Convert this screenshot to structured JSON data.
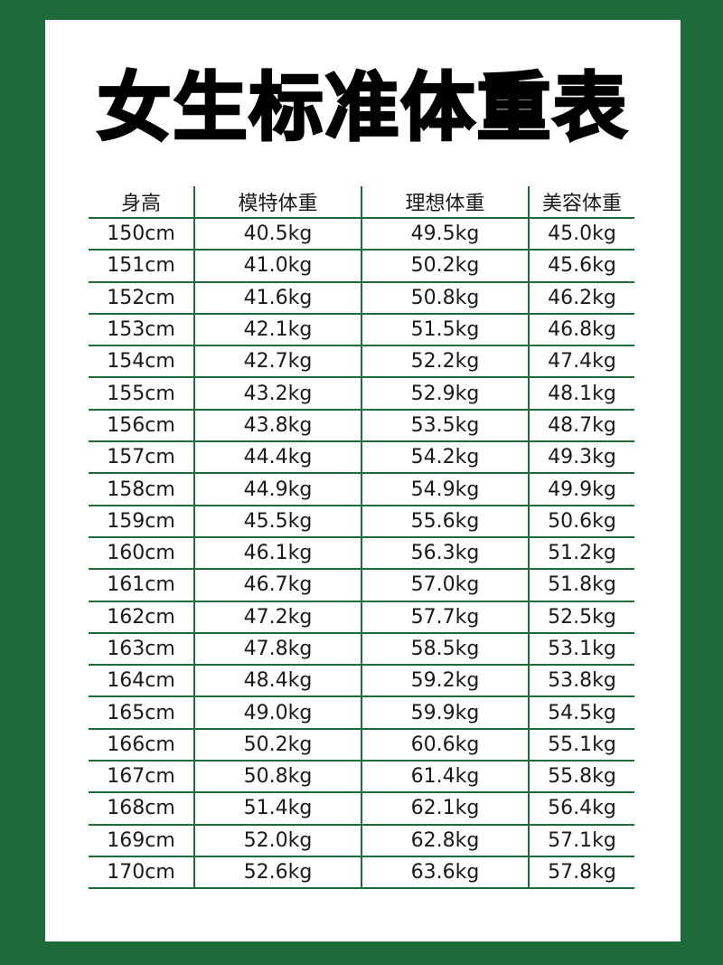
{
  "title": "女生标准体重表",
  "colors": {
    "frame": "#1d6a3b",
    "text": "#1a1a1a"
  },
  "table": {
    "headers": [
      "身高",
      "模特体重",
      "理想体重",
      "美容体重"
    ],
    "rows": [
      [
        "150cm",
        "40.5kg",
        "49.5kg",
        "45.0kg"
      ],
      [
        "151cm",
        "41.0kg",
        "50.2kg",
        "45.6kg"
      ],
      [
        "152cm",
        "41.6kg",
        "50.8kg",
        "46.2kg"
      ],
      [
        "153cm",
        "42.1kg",
        "51.5kg",
        "46.8kg"
      ],
      [
        "154cm",
        "42.7kg",
        "52.2kg",
        "47.4kg"
      ],
      [
        "155cm",
        "43.2kg",
        "52.9kg",
        "48.1kg"
      ],
      [
        "156cm",
        "43.8kg",
        "53.5kg",
        "48.7kg"
      ],
      [
        "157cm",
        "44.4kg",
        "54.2kg",
        "49.3kg"
      ],
      [
        "158cm",
        "44.9kg",
        "54.9kg",
        "49.9kg"
      ],
      [
        "159cm",
        "45.5kg",
        "55.6kg",
        "50.6kg"
      ],
      [
        "160cm",
        "46.1kg",
        "56.3kg",
        "51.2kg"
      ],
      [
        "161cm",
        "46.7kg",
        "57.0kg",
        "51.8kg"
      ],
      [
        "162cm",
        "47.2kg",
        "57.7kg",
        "52.5kg"
      ],
      [
        "163cm",
        "47.8kg",
        "58.5kg",
        "53.1kg"
      ],
      [
        "164cm",
        "48.4kg",
        "59.2kg",
        "53.8kg"
      ],
      [
        "165cm",
        "49.0kg",
        "59.9kg",
        "54.5kg"
      ],
      [
        "166cm",
        "50.2kg",
        "60.6kg",
        "55.1kg"
      ],
      [
        "167cm",
        "50.8kg",
        "61.4kg",
        "55.8kg"
      ],
      [
        "168cm",
        "51.4kg",
        "62.1kg",
        "56.4kg"
      ],
      [
        "169cm",
        "52.0kg",
        "62.8kg",
        "57.1kg"
      ],
      [
        "170cm",
        "52.6kg",
        "63.6kg",
        "57.8kg"
      ]
    ]
  }
}
